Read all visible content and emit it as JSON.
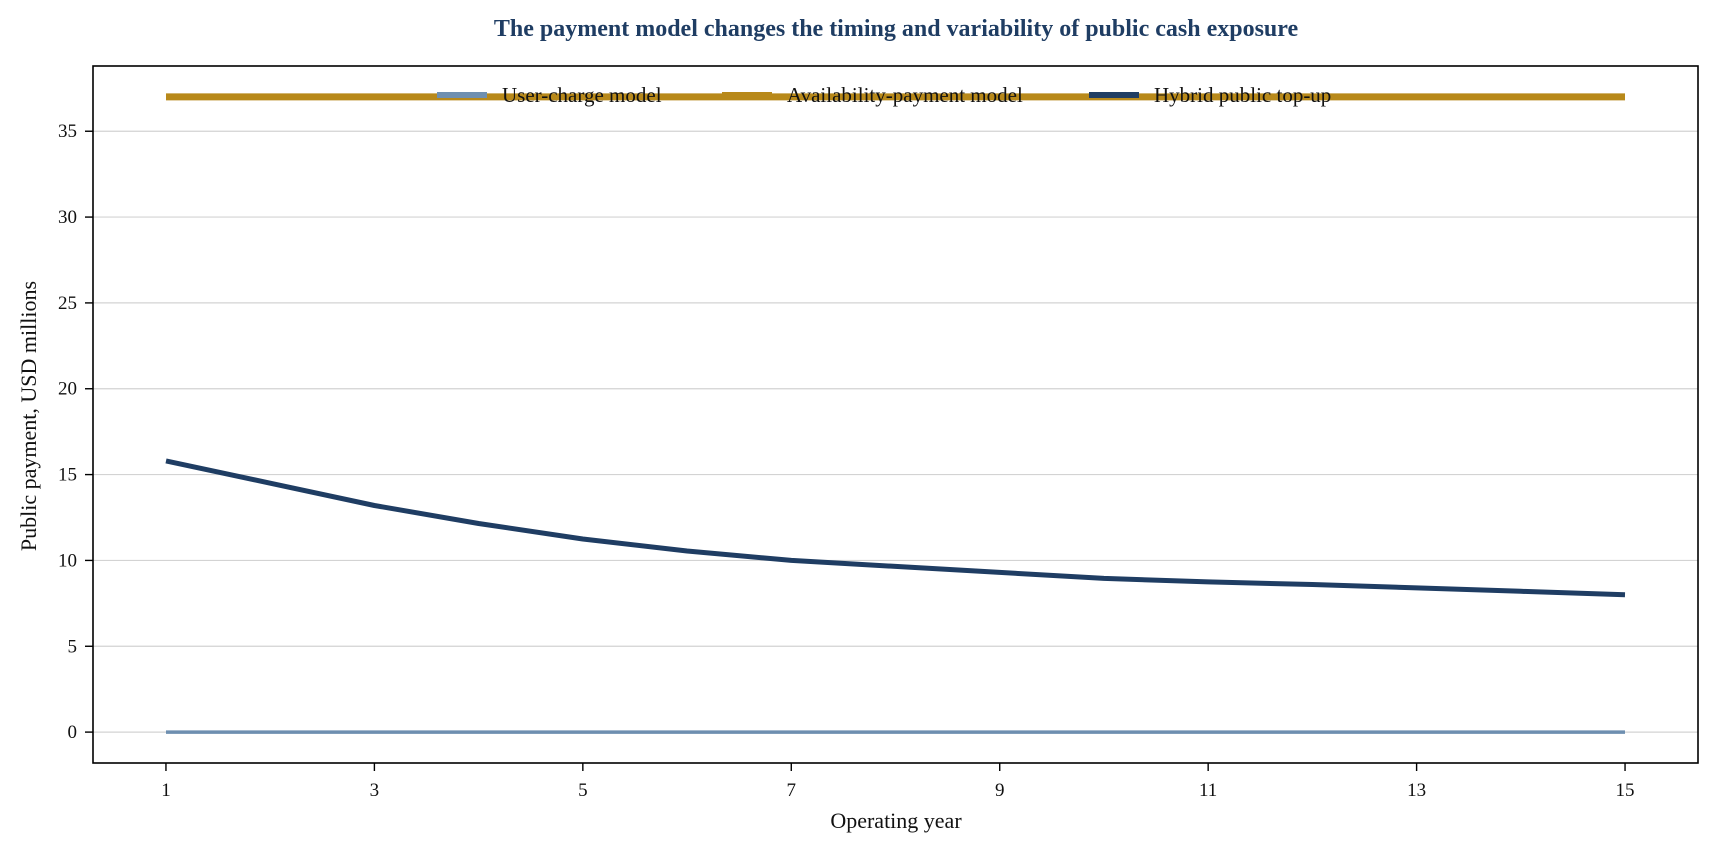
{
  "chart_data": {
    "type": "line",
    "title": "The payment model changes the timing and variability of public cash exposure",
    "xlabel": "Operating year",
    "ylabel": "Public payment, USD millions",
    "x": [
      1,
      2,
      3,
      4,
      5,
      6,
      7,
      8,
      9,
      10,
      11,
      12,
      13,
      14,
      15
    ],
    "xticks": [
      1,
      3,
      5,
      7,
      9,
      11,
      13,
      15
    ],
    "yticks": [
      0,
      5,
      10,
      15,
      20,
      25,
      30,
      35
    ],
    "xlim": [
      0.3,
      15.7
    ],
    "ylim": [
      -1.8,
      38.8
    ],
    "grid": "horizontal",
    "legend_position": "top-center",
    "series": [
      {
        "name": "User-charge model",
        "color": "#6e8fb0",
        "values": [
          0,
          0,
          0,
          0,
          0,
          0,
          0,
          0,
          0,
          0,
          0,
          0,
          0,
          0,
          0
        ]
      },
      {
        "name": "Availability-payment model",
        "color": "#b8891a",
        "values": [
          37,
          37,
          37,
          37,
          37,
          37,
          37,
          37,
          37,
          37,
          37,
          37,
          37,
          37,
          37
        ]
      },
      {
        "name": "Hybrid public top-up",
        "color": "#1f3d63",
        "values": [
          15.8,
          14.5,
          13.2,
          12.15,
          11.25,
          10.55,
          10.0,
          9.65,
          9.3,
          8.95,
          8.75,
          8.6,
          8.4,
          8.2,
          8.0
        ]
      }
    ]
  },
  "colors": {
    "title": "#1f3d63",
    "grid": "#d3d3d3",
    "axis": "#000000"
  }
}
